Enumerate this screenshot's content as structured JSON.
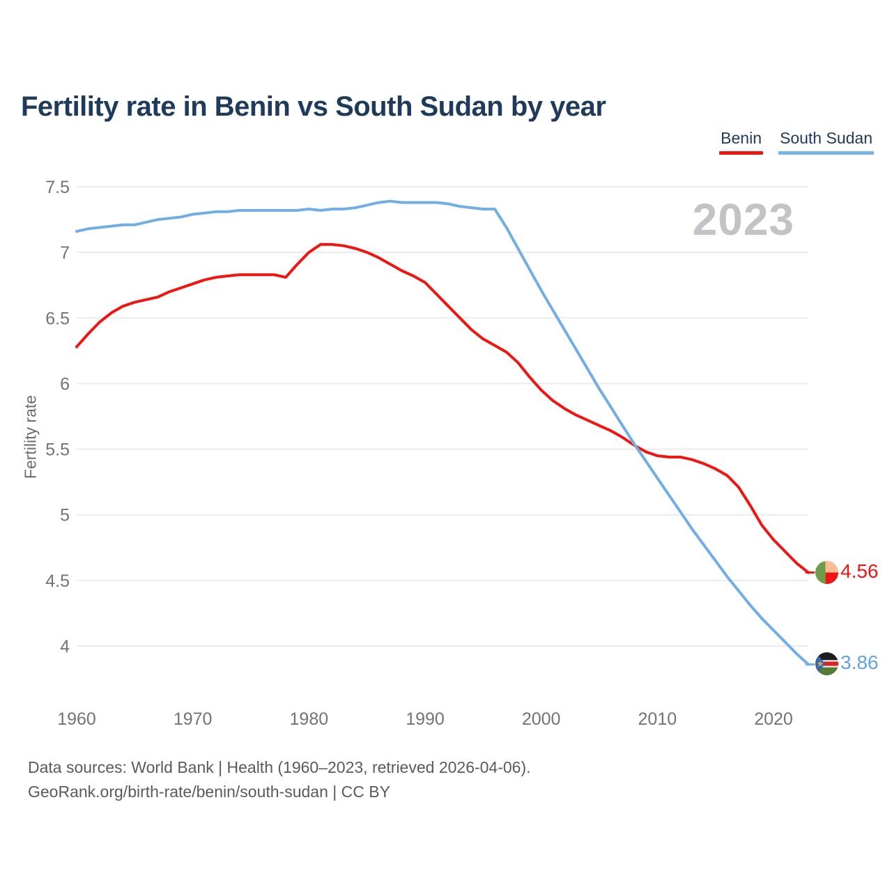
{
  "page": {
    "watermark_year": "2023",
    "source_line1": "Data sources: World Bank | Health (1960–2023, retrieved 2026-04-06).",
    "source_line2": "GeoRank.org/birth-rate/benin/south-sudan | CC BY"
  },
  "legend": {
    "position": "top-right",
    "items": [
      {
        "label": "Benin",
        "color": "#f01511",
        "flag_icon": "benin-flag-icon"
      },
      {
        "label": "South Sudan",
        "color": "#79b4e8",
        "flag_icon": "south-sudan-flag-icon"
      }
    ]
  },
  "chart_data": {
    "type": "line",
    "title": "Fertility rate in Benin vs South Sudan by year",
    "xlabel": "",
    "ylabel": "Fertility rate",
    "xlim": [
      1960,
      2023
    ],
    "ylim": [
      4,
      7.5
    ],
    "grid": true,
    "x_ticks": [
      1960,
      1970,
      1980,
      1990,
      2000,
      2010,
      2020
    ],
    "x_tick_labels": [
      "1960",
      "1970",
      "1980",
      "1990",
      "2000",
      "2010",
      "2020"
    ],
    "y_ticks": [
      7.5,
      7,
      6.5,
      6,
      5.5,
      5,
      4.5,
      4
    ],
    "y_tick_labels": [
      "7.5",
      "7",
      "6.5",
      "6",
      "5.5",
      "5",
      "4.5",
      "4"
    ],
    "x": [
      1960,
      1961,
      1962,
      1963,
      1964,
      1965,
      1966,
      1967,
      1968,
      1969,
      1970,
      1971,
      1972,
      1973,
      1974,
      1975,
      1976,
      1977,
      1978,
      1979,
      1980,
      1981,
      1982,
      1983,
      1984,
      1985,
      1986,
      1987,
      1988,
      1989,
      1990,
      1991,
      1992,
      1993,
      1994,
      1995,
      1996,
      1997,
      1998,
      1999,
      2000,
      2001,
      2002,
      2003,
      2004,
      2005,
      2006,
      2007,
      2008,
      2009,
      2010,
      2011,
      2012,
      2013,
      2014,
      2015,
      2016,
      2017,
      2018,
      2019,
      2020,
      2021,
      2022,
      2023
    ],
    "series": [
      {
        "name": "Benin",
        "color": "#f01511",
        "end_value": 4.56,
        "end_label": "4.56",
        "values": [
          6.28,
          6.38,
          6.47,
          6.54,
          6.59,
          6.62,
          6.64,
          6.66,
          6.7,
          6.73,
          6.76,
          6.79,
          6.81,
          6.82,
          6.83,
          6.83,
          6.83,
          6.83,
          6.81,
          6.91,
          7.0,
          7.06,
          7.06,
          7.05,
          7.03,
          7.0,
          6.96,
          6.91,
          6.86,
          6.82,
          6.77,
          6.68,
          6.59,
          6.5,
          6.41,
          6.34,
          6.29,
          6.24,
          6.16,
          6.05,
          5.95,
          5.87,
          5.81,
          5.76,
          5.72,
          5.68,
          5.64,
          5.59,
          5.53,
          5.48,
          5.45,
          5.44,
          5.44,
          5.42,
          5.39,
          5.35,
          5.3,
          5.21,
          5.07,
          4.92,
          4.81,
          4.72,
          4.63,
          4.56
        ]
      },
      {
        "name": "South Sudan",
        "color": "#72aee6",
        "end_value": 3.86,
        "end_label": "3.86",
        "values": [
          7.16,
          7.18,
          7.19,
          7.2,
          7.21,
          7.21,
          7.23,
          7.25,
          7.26,
          7.27,
          7.29,
          7.3,
          7.31,
          7.31,
          7.32,
          7.32,
          7.32,
          7.32,
          7.32,
          7.32,
          7.33,
          7.32,
          7.33,
          7.33,
          7.34,
          7.36,
          7.38,
          7.39,
          7.38,
          7.38,
          7.38,
          7.38,
          7.37,
          7.35,
          7.34,
          7.33,
          7.33,
          7.19,
          7.03,
          6.87,
          6.71,
          6.56,
          6.41,
          6.26,
          6.11,
          5.96,
          5.82,
          5.68,
          5.54,
          5.41,
          5.28,
          5.15,
          5.02,
          4.89,
          4.77,
          4.65,
          4.53,
          4.42,
          4.31,
          4.21,
          4.12,
          4.03,
          3.94,
          3.86
        ]
      }
    ]
  },
  "style": {
    "grid_color": "#ececec",
    "tick_color": "#737373",
    "title_color": "#1f3b5c",
    "watermark_color": "#c3c3c7",
    "footer_color": "#5a5a5a"
  }
}
